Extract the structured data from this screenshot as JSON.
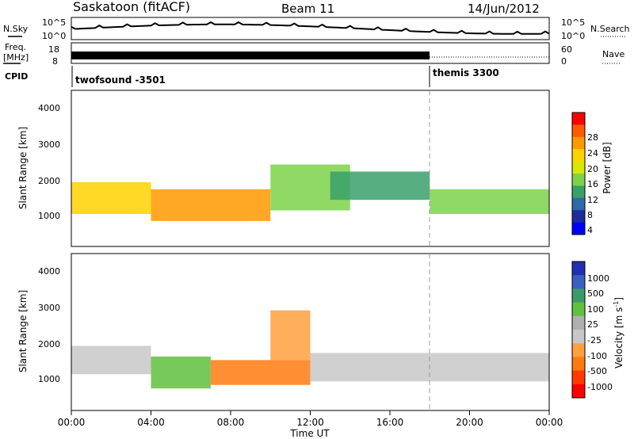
{
  "header": {
    "title": "Saskatoon (fitACF)",
    "beam": "Beam 11",
    "date": "14/Jun/2012"
  },
  "noise_panel": {
    "left_label": "N.Sky",
    "left_tick_top": "10^5",
    "left_tick_bottom": "10^0",
    "right_tick_top": "10^5",
    "right_tick_bottom": "10^0",
    "right_label": "N.Search"
  },
  "freq_panel": {
    "left_label_1": "Freq.",
    "left_label_2": "[MHz]",
    "left_tick_top": "18",
    "left_tick_bottom": "8",
    "right_tick_top": "60",
    "right_tick_bottom": "0",
    "right_label": "Nave"
  },
  "cpid_panel": {
    "label": "CPID",
    "segments": [
      {
        "name": "twofsound -3501",
        "start_hour": 0,
        "end_hour": 18
      },
      {
        "name": "themis 3300",
        "start_hour": 18,
        "end_hour": 24
      }
    ]
  },
  "power_panel": {
    "ylabel": "Slant Range [km]",
    "yticks": [
      "4000",
      "3000",
      "2000",
      "1000"
    ],
    "colorbar_label": "Power [dB]",
    "colorbar_ticks": [
      "28",
      "24",
      "20",
      "16",
      "12",
      "8",
      "4"
    ],
    "colorbar_colors": [
      "#ff0000",
      "#ff5a00",
      "#ff9900",
      "#ffd200",
      "#d8e600",
      "#7ed24a",
      "#3aa06a",
      "#2e6aa8",
      "#1f2aa0",
      "#0000ff"
    ]
  },
  "velocity_panel": {
    "ylabel": "Slant Range [km]",
    "yticks": [
      "4000",
      "3000",
      "2000",
      "1000"
    ],
    "colorbar_label": "Velocity [m s",
    "colorbar_unit_sup": "-1",
    "colorbar_unit_end": "]",
    "colorbar_ticks": [
      "1000",
      "500",
      "100",
      "25",
      "-25",
      "-100",
      "-500",
      "-1000"
    ],
    "colorbar_colors": [
      "#2030b0",
      "#3a5fc0",
      "#3a9a6a",
      "#60c040",
      "#b0b0b0",
      "#c8c8c8",
      "#ffa040",
      "#ff7a10",
      "#ff3a00",
      "#ff0000"
    ]
  },
  "xaxis": {
    "ticks": [
      "00:00",
      "04:00",
      "08:00",
      "12:00",
      "16:00",
      "20:00",
      "00:00"
    ],
    "label": "Time UT"
  },
  "chart_data": {
    "type": "heatmap",
    "title": "Saskatoon (fitACF)",
    "subtitle": "Beam 11",
    "date": "14/Jun/2012",
    "xlabel": "Time UT",
    "xlim_hours": [
      0,
      24
    ],
    "ylabel": "Slant Range [km]",
    "ylim": [
      180,
      4600
    ],
    "panels": [
      {
        "name": "Power",
        "colorbar_label": "Power [dB]",
        "clim": [
          0,
          32
        ],
        "echo_regions": [
          {
            "t0": 0,
            "t1": 4,
            "r0": 1100,
            "r1": 2000,
            "value": 22
          },
          {
            "t0": 4,
            "t1": 10,
            "r0": 900,
            "r1": 1800,
            "value": 26
          },
          {
            "t0": 10,
            "t1": 14,
            "r0": 1200,
            "r1": 2500,
            "value": 14
          },
          {
            "t0": 13,
            "t1": 18,
            "r0": 1500,
            "r1": 2300,
            "value": 10
          },
          {
            "t0": 18,
            "t1": 24,
            "r0": 1100,
            "r1": 1800,
            "value": 14
          }
        ]
      },
      {
        "name": "Velocity",
        "colorbar_label": "Velocity [m s-1]",
        "clim": [
          -1000,
          1000
        ],
        "echo_regions": [
          {
            "t0": 0,
            "t1": 4,
            "r0": 1200,
            "r1": 2000,
            "value": 0
          },
          {
            "t0": 4,
            "t1": 7,
            "r0": 800,
            "r1": 1700,
            "value": 300
          },
          {
            "t0": 7,
            "t1": 12,
            "r0": 900,
            "r1": 1600,
            "value": -600
          },
          {
            "t0": 10,
            "t1": 12,
            "r0": 1600,
            "r1": 3000,
            "value": -400
          },
          {
            "t0": 12,
            "t1": 24,
            "r0": 1000,
            "r1": 1800,
            "value": 0
          }
        ]
      }
    ],
    "cpid_change_hour": 18
  }
}
